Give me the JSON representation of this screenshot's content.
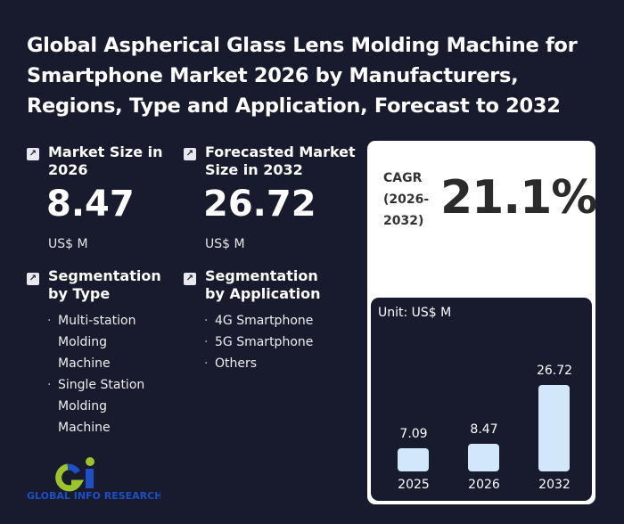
{
  "title": "Global Aspherical Glass Lens Molding Machine for Smartphone Market 2026 by Manufacturers, Regions, Type and Application, Forecast to 2032",
  "market_size": {
    "label": "Market Size in 2026",
    "value": "8.47",
    "unit": "US$ M",
    "icon": "arrow-up-right-icon"
  },
  "forecast": {
    "label": "Forecasted Market Size in 2032",
    "value": "26.72",
    "unit": "US$ M",
    "icon": "arrow-up-right-icon"
  },
  "seg_type": {
    "label": "Segmentation by Type",
    "items": [
      "Multi-station Molding Machine",
      "Single Station Molding Machine"
    ]
  },
  "seg_app": {
    "label": "Segmentation by Application",
    "items": [
      "4G Smartphone",
      "5G Smartphone",
      "Others"
    ]
  },
  "cagr": {
    "label": "CAGR (2026-2032)",
    "value": "21.1%"
  },
  "logo": {
    "text": "GLOBAL INFO RESEARCH"
  },
  "colors": {
    "background": "#181a2e",
    "bar": "#d3e7fb",
    "logo_blue": "#1f4fc4",
    "logo_green": "#9dc42b"
  },
  "chart_data": {
    "type": "bar",
    "unit_label": "Unit: US$ M",
    "categories": [
      "2025",
      "2026",
      "2032"
    ],
    "values": [
      7.09,
      8.47,
      26.72
    ],
    "value_labels": [
      "7.09",
      "8.47",
      "26.72"
    ]
  }
}
